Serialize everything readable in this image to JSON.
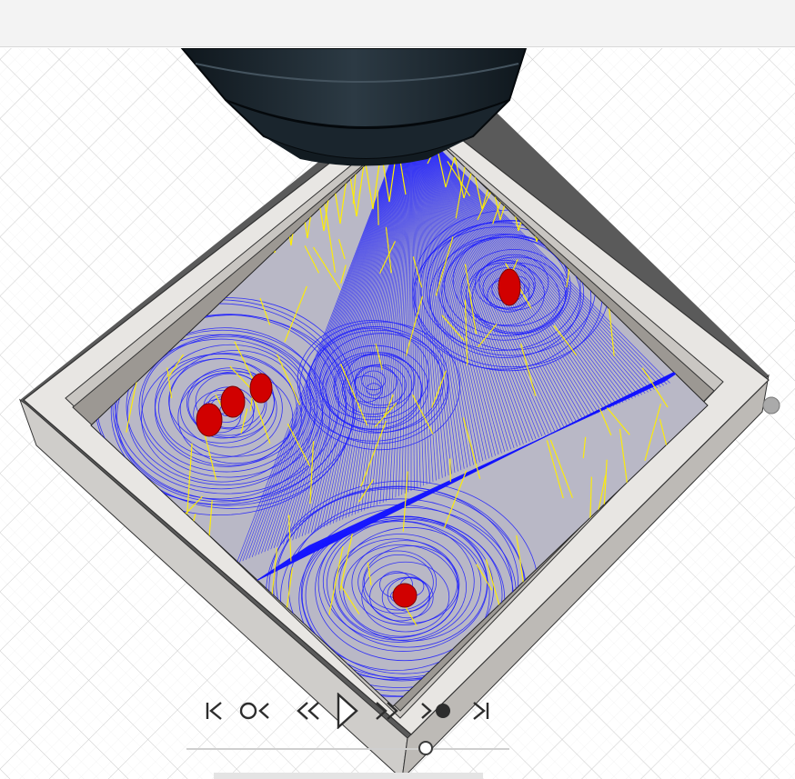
{
  "colors": {
    "toolpath_cut": "#1a1aff",
    "toolpath_rapid": "#ffee00",
    "plunge_markers": "#d10000",
    "stock": "#d9d7d4",
    "tool_holder": "#1e2a33",
    "grid": "#c8c8c8"
  },
  "playback": {
    "controls": [
      {
        "name": "jump-to-start",
        "icon": "skip-start-icon"
      },
      {
        "name": "previous-operation",
        "icon": "step-back-icon"
      },
      {
        "name": "step-backward",
        "icon": "rewind-icon"
      },
      {
        "name": "play",
        "icon": "play-icon"
      },
      {
        "name": "step-forward",
        "icon": "fast-forward-icon"
      },
      {
        "name": "next-operation",
        "icon": "step-next-icon"
      },
      {
        "name": "jump-to-end",
        "icon": "skip-end-icon"
      }
    ],
    "scrubber_position": 0.75
  }
}
